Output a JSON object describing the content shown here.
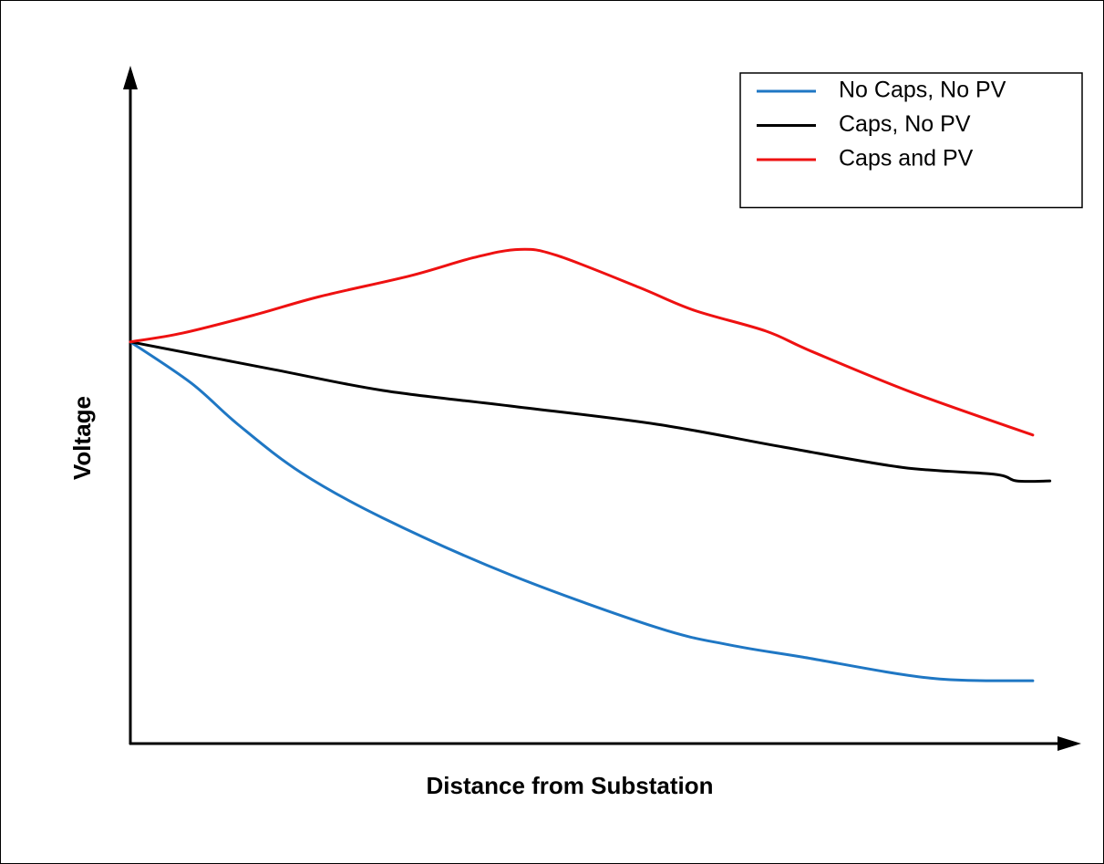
{
  "chart_data": {
    "type": "line",
    "x_label": "Distance from Substation",
    "y_label": "Voltage",
    "xlim": [
      0,
      100
    ],
    "ylim": [
      0,
      100
    ],
    "grid": false,
    "legend": "upper right",
    "series": [
      {
        "name": "No Caps, No PV",
        "color": "#1f77c4",
        "x": [
          0,
          6.4,
          11.3,
          18.0,
          26.6,
          40.0,
          55.4,
          63.1,
          70.8,
          84.2,
          95.0
        ],
        "values": [
          59.5,
          53.4,
          47.3,
          40.1,
          33.4,
          25.0,
          17.2,
          14.6,
          12.8,
          9.7,
          9.3
        ]
      },
      {
        "name": "Caps, No PV",
        "color": "#000000",
        "x": [
          0,
          15.1,
          26.6,
          40.0,
          55.4,
          68.8,
          81.3,
          90.9,
          93.3,
          96.8
        ],
        "values": [
          59.5,
          55.4,
          52.3,
          50.0,
          47.3,
          43.9,
          40.9,
          39.9,
          38.9,
          38.9
        ]
      },
      {
        "name": "Caps and PV",
        "color": "#ee1111",
        "x": [
          0,
          5.5,
          13.1,
          19.9,
          29.5,
          36.2,
          41.0,
          44.9,
          53.5,
          59.3,
          66.9,
          71.7,
          82.3,
          95.0
        ],
        "values": [
          59.5,
          60.8,
          63.5,
          66.2,
          69.3,
          72.0,
          73.2,
          72.3,
          67.6,
          64.2,
          61.1,
          58.1,
          52.0,
          45.7
        ]
      }
    ]
  }
}
